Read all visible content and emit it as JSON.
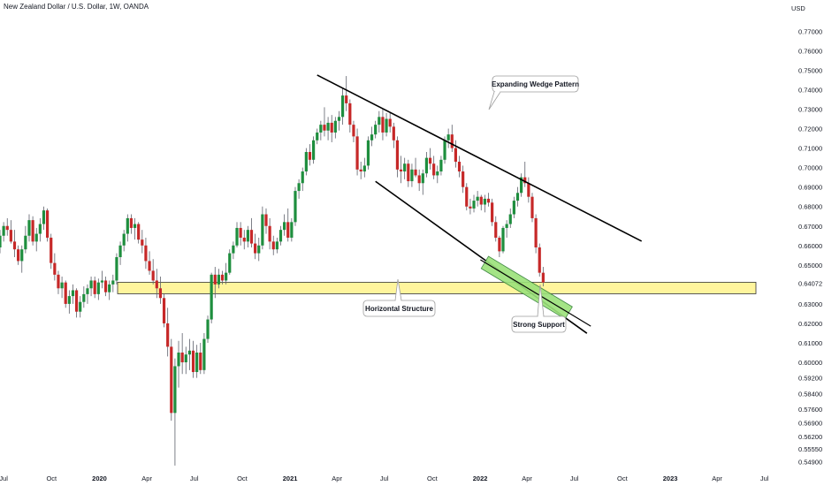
{
  "title": "New Zealand Dollar / U.S. Dollar, 1W, OANDA",
  "colors": {
    "up": "#26a69a",
    "up_fill": "#1e8e3e",
    "down": "#c62828",
    "wick": "#5d606b",
    "support_zone": "#fff59d",
    "support_zone_border": "#333333",
    "channel_zone": "#9be27a",
    "line": "#000000"
  },
  "chart_data": {
    "type": "candlestick",
    "title": "New Zealand Dollar / U.S. Dollar, 1W, OANDA",
    "currency_label": "USD",
    "ylim": [
      0.5442,
      0.7806
    ],
    "xlim": [
      "2019-06-24",
      "2023-07-10"
    ],
    "y_ticks": [
      "0.77000",
      "0.76000",
      "0.75000",
      "0.74000",
      "0.73000",
      "0.72000",
      "0.71000",
      "0.70000",
      "0.69000",
      "0.68000",
      "0.67000",
      "0.66000",
      "0.65000",
      "0.64072",
      "0.63000",
      "0.62000",
      "0.61000",
      "0.60000",
      "0.59200",
      "0.58400",
      "0.57600",
      "0.56900",
      "0.56200",
      "0.55550",
      "0.54900"
    ],
    "x_ticks": [
      {
        "label": "Jul",
        "date": "2019-07-01",
        "bold": false
      },
      {
        "label": "Oct",
        "date": "2019-10-01",
        "bold": false
      },
      {
        "label": "2020",
        "date": "2020-01-01",
        "bold": true
      },
      {
        "label": "Apr",
        "date": "2020-04-01",
        "bold": false
      },
      {
        "label": "Jul",
        "date": "2020-07-01",
        "bold": false
      },
      {
        "label": "Oct",
        "date": "2020-10-01",
        "bold": false
      },
      {
        "label": "2021",
        "date": "2021-01-01",
        "bold": true
      },
      {
        "label": "Apr",
        "date": "2021-04-01",
        "bold": false
      },
      {
        "label": "Jul",
        "date": "2021-07-01",
        "bold": false
      },
      {
        "label": "Oct",
        "date": "2021-10-01",
        "bold": false
      },
      {
        "label": "2022",
        "date": "2022-01-01",
        "bold": true
      },
      {
        "label": "Apr",
        "date": "2022-04-01",
        "bold": false
      },
      {
        "label": "Jul",
        "date": "2022-07-01",
        "bold": false
      },
      {
        "label": "Oct",
        "date": "2022-10-01",
        "bold": false
      },
      {
        "label": "2023",
        "date": "2023-01-01",
        "bold": true
      },
      {
        "label": "Apr",
        "date": "2023-04-01",
        "bold": false
      },
      {
        "label": "Jul",
        "date": "2023-07-01",
        "bold": false
      }
    ],
    "start_date": "2019-06-24",
    "series": [
      {
        "name": "NZDUSD",
        "values": [
          [
            0.659,
            0.668,
            0.656,
            0.665
          ],
          [
            0.665,
            0.672,
            0.662,
            0.67
          ],
          [
            0.67,
            0.674,
            0.665,
            0.668
          ],
          [
            0.668,
            0.673,
            0.661,
            0.662
          ],
          [
            0.662,
            0.668,
            0.654,
            0.658
          ],
          [
            0.658,
            0.66,
            0.65,
            0.652
          ],
          [
            0.652,
            0.66,
            0.646,
            0.658
          ],
          [
            0.658,
            0.67,
            0.656,
            0.665
          ],
          [
            0.665,
            0.676,
            0.662,
            0.673
          ],
          [
            0.673,
            0.675,
            0.66,
            0.662
          ],
          [
            0.662,
            0.669,
            0.657,
            0.666
          ],
          [
            0.666,
            0.674,
            0.662,
            0.671
          ],
          [
            0.671,
            0.68,
            0.668,
            0.678
          ],
          [
            0.678,
            0.679,
            0.662,
            0.664
          ],
          [
            0.664,
            0.666,
            0.648,
            0.651
          ],
          [
            0.651,
            0.656,
            0.642,
            0.645
          ],
          [
            0.645,
            0.647,
            0.635,
            0.638
          ],
          [
            0.638,
            0.644,
            0.633,
            0.641
          ],
          [
            0.641,
            0.642,
            0.628,
            0.63
          ],
          [
            0.63,
            0.637,
            0.625,
            0.634
          ],
          [
            0.634,
            0.64,
            0.63,
            0.637
          ],
          [
            0.637,
            0.638,
            0.623,
            0.626
          ],
          [
            0.626,
            0.634,
            0.623,
            0.631
          ],
          [
            0.631,
            0.639,
            0.628,
            0.635
          ],
          [
            0.635,
            0.64,
            0.63,
            0.638
          ],
          [
            0.638,
            0.644,
            0.634,
            0.642
          ],
          [
            0.642,
            0.644,
            0.633,
            0.635
          ],
          [
            0.635,
            0.643,
            0.632,
            0.641
          ],
          [
            0.641,
            0.647,
            0.638,
            0.642
          ],
          [
            0.642,
            0.644,
            0.634,
            0.636
          ],
          [
            0.636,
            0.642,
            0.632,
            0.64
          ],
          [
            0.64,
            0.645,
            0.636,
            0.642
          ],
          [
            0.642,
            0.656,
            0.64,
            0.654
          ],
          [
            0.654,
            0.662,
            0.65,
            0.66
          ],
          [
            0.66,
            0.668,
            0.657,
            0.666
          ],
          [
            0.666,
            0.676,
            0.662,
            0.674
          ],
          [
            0.674,
            0.676,
            0.666,
            0.669
          ],
          [
            0.669,
            0.674,
            0.663,
            0.671
          ],
          [
            0.671,
            0.672,
            0.661,
            0.663
          ],
          [
            0.663,
            0.668,
            0.656,
            0.66
          ],
          [
            0.66,
            0.664,
            0.648,
            0.652
          ],
          [
            0.652,
            0.657,
            0.645,
            0.647
          ],
          [
            0.647,
            0.653,
            0.64,
            0.642
          ],
          [
            0.642,
            0.648,
            0.633,
            0.638
          ],
          [
            0.638,
            0.644,
            0.63,
            0.633
          ],
          [
            0.633,
            0.635,
            0.618,
            0.62
          ],
          [
            0.62,
            0.628,
            0.603,
            0.608
          ],
          [
            0.608,
            0.612,
            0.57,
            0.574
          ],
          [
            0.574,
            0.602,
            0.547,
            0.598
          ],
          [
            0.598,
            0.611,
            0.587,
            0.605
          ],
          [
            0.605,
            0.615,
            0.594,
            0.6
          ],
          [
            0.6,
            0.608,
            0.594,
            0.604
          ],
          [
            0.604,
            0.612,
            0.596,
            0.606
          ],
          [
            0.606,
            0.611,
            0.592,
            0.595
          ],
          [
            0.595,
            0.609,
            0.592,
            0.605
          ],
          [
            0.605,
            0.61,
            0.594,
            0.596
          ],
          [
            0.596,
            0.615,
            0.594,
            0.612
          ],
          [
            0.612,
            0.624,
            0.61,
            0.622
          ],
          [
            0.622,
            0.646,
            0.62,
            0.645
          ],
          [
            0.645,
            0.649,
            0.633,
            0.64
          ],
          [
            0.64,
            0.648,
            0.638,
            0.645
          ],
          [
            0.645,
            0.647,
            0.64,
            0.642
          ],
          [
            0.642,
            0.651,
            0.64,
            0.646
          ],
          [
            0.646,
            0.658,
            0.645,
            0.656
          ],
          [
            0.656,
            0.662,
            0.653,
            0.66
          ],
          [
            0.66,
            0.672,
            0.659,
            0.669
          ],
          [
            0.669,
            0.672,
            0.66,
            0.664
          ],
          [
            0.664,
            0.668,
            0.658,
            0.662
          ],
          [
            0.662,
            0.67,
            0.659,
            0.668
          ],
          [
            0.668,
            0.674,
            0.659,
            0.661
          ],
          [
            0.661,
            0.666,
            0.653,
            0.656
          ],
          [
            0.656,
            0.664,
            0.652,
            0.66
          ],
          [
            0.66,
            0.68,
            0.658,
            0.676
          ],
          [
            0.676,
            0.679,
            0.666,
            0.67
          ],
          [
            0.67,
            0.674,
            0.658,
            0.662
          ],
          [
            0.662,
            0.665,
            0.655,
            0.658
          ],
          [
            0.658,
            0.664,
            0.656,
            0.662
          ],
          [
            0.662,
            0.67,
            0.66,
            0.668
          ],
          [
            0.668,
            0.676,
            0.665,
            0.672
          ],
          [
            0.672,
            0.679,
            0.662,
            0.664
          ],
          [
            0.664,
            0.674,
            0.662,
            0.672
          ],
          [
            0.672,
            0.69,
            0.67,
            0.688
          ],
          [
            0.688,
            0.694,
            0.684,
            0.692
          ],
          [
            0.692,
            0.7,
            0.688,
            0.698
          ],
          [
            0.698,
            0.71,
            0.696,
            0.708
          ],
          [
            0.708,
            0.712,
            0.701,
            0.704
          ],
          [
            0.704,
            0.716,
            0.702,
            0.714
          ],
          [
            0.714,
            0.72,
            0.712,
            0.718
          ],
          [
            0.718,
            0.724,
            0.714,
            0.722
          ],
          [
            0.722,
            0.731,
            0.716,
            0.719
          ],
          [
            0.719,
            0.726,
            0.714,
            0.723
          ],
          [
            0.723,
            0.727,
            0.713,
            0.718
          ],
          [
            0.718,
            0.726,
            0.715,
            0.724
          ],
          [
            0.724,
            0.729,
            0.719,
            0.726
          ],
          [
            0.726,
            0.741,
            0.722,
            0.737
          ],
          [
            0.737,
            0.747,
            0.729,
            0.733
          ],
          [
            0.733,
            0.735,
            0.718,
            0.722
          ],
          [
            0.722,
            0.724,
            0.713,
            0.716
          ],
          [
            0.716,
            0.72,
            0.696,
            0.699
          ],
          [
            0.699,
            0.703,
            0.694,
            0.698
          ],
          [
            0.698,
            0.705,
            0.695,
            0.701
          ],
          [
            0.701,
            0.716,
            0.699,
            0.714
          ],
          [
            0.714,
            0.721,
            0.711,
            0.717
          ],
          [
            0.717,
            0.724,
            0.715,
            0.722
          ],
          [
            0.722,
            0.729,
            0.718,
            0.726
          ],
          [
            0.726,
            0.73,
            0.714,
            0.718
          ],
          [
            0.718,
            0.728,
            0.716,
            0.725
          ],
          [
            0.725,
            0.728,
            0.718,
            0.721
          ],
          [
            0.721,
            0.723,
            0.71,
            0.714
          ],
          [
            0.714,
            0.716,
            0.695,
            0.699
          ],
          [
            0.699,
            0.706,
            0.692,
            0.698
          ],
          [
            0.698,
            0.705,
            0.694,
            0.702
          ],
          [
            0.702,
            0.704,
            0.69,
            0.693
          ],
          [
            0.693,
            0.702,
            0.69,
            0.699
          ],
          [
            0.699,
            0.705,
            0.695,
            0.696
          ],
          [
            0.696,
            0.699,
            0.688,
            0.692
          ],
          [
            0.692,
            0.699,
            0.686,
            0.697
          ],
          [
            0.697,
            0.708,
            0.695,
            0.705
          ],
          [
            0.705,
            0.71,
            0.699,
            0.702
          ],
          [
            0.702,
            0.706,
            0.694,
            0.696
          ],
          [
            0.696,
            0.701,
            0.692,
            0.698
          ],
          [
            0.698,
            0.706,
            0.696,
            0.704
          ],
          [
            0.704,
            0.716,
            0.702,
            0.714
          ],
          [
            0.714,
            0.72,
            0.71,
            0.717
          ],
          [
            0.717,
            0.722,
            0.708,
            0.71
          ],
          [
            0.71,
            0.714,
            0.7,
            0.703
          ],
          [
            0.703,
            0.706,
            0.695,
            0.698
          ],
          [
            0.698,
            0.701,
            0.687,
            0.69
          ],
          [
            0.69,
            0.692,
            0.678,
            0.68
          ],
          [
            0.68,
            0.684,
            0.676,
            0.679
          ],
          [
            0.679,
            0.686,
            0.677,
            0.683
          ],
          [
            0.683,
            0.688,
            0.68,
            0.685
          ],
          [
            0.685,
            0.686,
            0.678,
            0.681
          ],
          [
            0.681,
            0.686,
            0.677,
            0.684
          ],
          [
            0.684,
            0.687,
            0.68,
            0.682
          ],
          [
            0.682,
            0.684,
            0.67,
            0.672
          ],
          [
            0.672,
            0.675,
            0.662,
            0.664
          ],
          [
            0.664,
            0.665,
            0.654,
            0.657
          ],
          [
            0.657,
            0.67,
            0.656,
            0.669
          ],
          [
            0.669,
            0.673,
            0.664,
            0.671
          ],
          [
            0.671,
            0.679,
            0.669,
            0.676
          ],
          [
            0.676,
            0.685,
            0.674,
            0.683
          ],
          [
            0.683,
            0.69,
            0.68,
            0.687
          ],
          [
            0.687,
            0.697,
            0.685,
            0.695
          ],
          [
            0.695,
            0.703,
            0.69,
            0.692
          ],
          [
            0.692,
            0.695,
            0.682,
            0.685
          ],
          [
            0.685,
            0.687,
            0.672,
            0.674
          ],
          [
            0.674,
            0.676,
            0.656,
            0.659
          ],
          [
            0.659,
            0.661,
            0.644,
            0.646
          ],
          [
            0.646,
            0.649,
            0.639,
            0.641
          ]
        ]
      }
    ],
    "annotations": [
      {
        "text": "Expanding Wedge Pattern"
      },
      {
        "text": "Horizontal Structure"
      },
      {
        "text": "Strong Support"
      }
    ],
    "support_zone_range": [
      0.6352,
      0.6411
    ],
    "wedge_upper": [
      {
        "date": "2021-02-22",
        "value": 0.7475
      },
      {
        "date": "2022-11-07",
        "value": 0.6622
      }
    ],
    "wedge_lower": [
      {
        "date": "2021-06-14",
        "value": 0.6929
      },
      {
        "date": "2022-07-25",
        "value": 0.6149
      }
    ],
    "channel_zone": [
      {
        "date": "2022-01-10",
        "value": 0.6513
      },
      {
        "date": "2022-06-20",
        "value": 0.6254
      }
    ]
  }
}
